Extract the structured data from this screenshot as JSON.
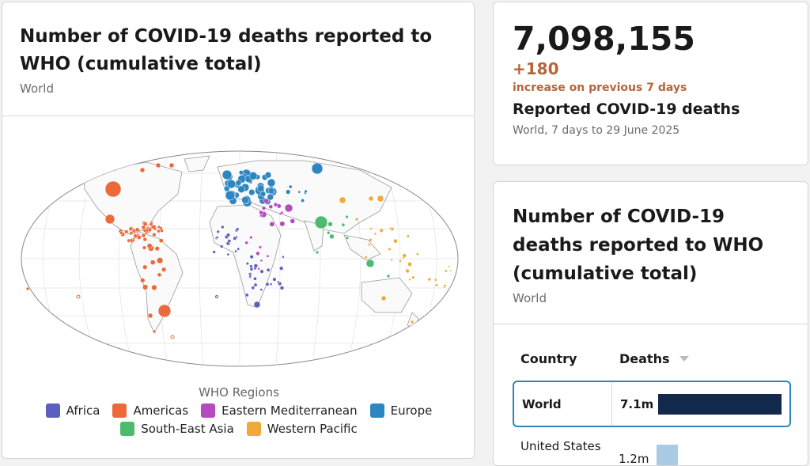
{
  "map_card": {
    "title": "Number of COVID-19 deaths reported to WHO (cumulative total)",
    "subtitle": "World",
    "legend_title": "WHO Regions",
    "legend": [
      {
        "label": "Africa",
        "color": "#5b5fbf"
      },
      {
        "label": "Americas",
        "color": "#ec6a3a"
      },
      {
        "label": "Eastern Mediterranean",
        "color": "#b44cbf"
      },
      {
        "label": "Europe",
        "color": "#2e86c1"
      },
      {
        "label": "South-East Asia",
        "color": "#4dbb6e"
      },
      {
        "label": "Western Pacific",
        "color": "#f2a93b"
      }
    ]
  },
  "stat_card": {
    "value": "7,098,155",
    "delta": "+180",
    "delta_label": "increase on previous 7 days",
    "title": "Reported COVID-19 deaths",
    "subtitle": "World, 7 days to 29 June 2025"
  },
  "table_card": {
    "title": "Number of COVID-19 deaths reported to WHO (cumulative total)",
    "subtitle": "World",
    "col_country": "Country",
    "col_deaths": "Deaths",
    "rows": [
      {
        "country": "World",
        "deaths": "7.1m",
        "share": 1.0
      },
      {
        "country": "United States",
        "deaths": "1.2m",
        "share": 0.17
      }
    ]
  }
}
